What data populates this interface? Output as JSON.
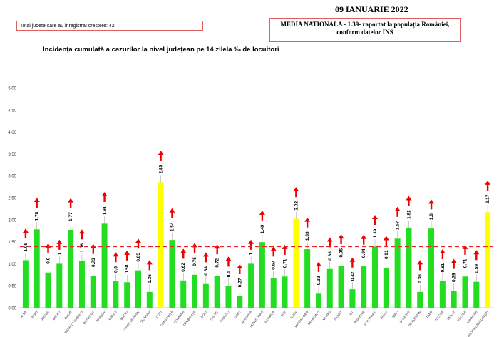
{
  "header": {
    "date": "09 IANUARIE 2022",
    "increase_note": "Total judete care au inregistrat crestere: 42",
    "national_media_line1": "MEDIA NATIONALA   - 1.39-   raportat la populația României,",
    "national_media_line2": "conform datelor INS"
  },
  "colors": {
    "bar_default": "#22dd22",
    "bar_highlight": "#ffff00",
    "arrow": "#ee0000",
    "reference_line": "#ee2222"
  },
  "chart_data": {
    "type": "bar",
    "title": "Incidența cumulată a cazurilor la nivel județean pe 14 zilela ‰ de locuitori",
    "ylim": [
      0,
      5
    ],
    "yticks": [
      "0.00",
      "0.50",
      "1.00",
      "1.50",
      "2.00",
      "2.50",
      "3.00",
      "3.50",
      "4.00",
      "4.50",
      "5.00"
    ],
    "reference_value": 1.39,
    "categories": [
      "ALBA",
      "ARAD",
      "ARGEȘ",
      "BACĂU",
      "BIHOR",
      "BISTRIȚA-NĂSĂUD",
      "BOTOȘANI",
      "BRAȘOV",
      "BRĂILA",
      "BUZĂU",
      "CARAȘ-SEVERIN",
      "CĂLĂRAȘI",
      "CLUJ",
      "CONSTANȚA",
      "COVASNA",
      "DÂMBOVIȚA",
      "DOLJ",
      "GALAȚI",
      "GIURGIU",
      "GORJ",
      "HARGHITA",
      "HUNEDOARA",
      "IALOMIȚA",
      "IAȘI",
      "ILFOV",
      "MARAMUREȘ",
      "MEHEDINȚI",
      "MUREȘ",
      "NEAMȚ",
      "OLT",
      "PRAHOVA",
      "SATU-MARE",
      "SĂLAJ",
      "SIBIU",
      "SUCEAVA",
      "TELEORMAN",
      "TIMIȘ",
      "TULCEA",
      "VASLUI",
      "VÂLCEA",
      "VRANCEA",
      "MUNICIPIUL BUCUREȘTI"
    ],
    "values": [
      1.08,
      1.78,
      0.8,
      1,
      1.77,
      1.06,
      0.73,
      1.91,
      0.6,
      0.58,
      0.85,
      0.36,
      2.85,
      1.54,
      0.62,
      0.75,
      0.54,
      0.72,
      0.5,
      0.27,
      1,
      1.49,
      0.67,
      0.71,
      2.02,
      1.33,
      0.32,
      0.88,
      0.95,
      0.42,
      0.94,
      1.39,
      0.91,
      1.57,
      1.82,
      0.36,
      1.8,
      0.61,
      0.39,
      0.71,
      0.59,
      2.17
    ],
    "labels": [
      "1.08",
      "1.78",
      "0.8",
      "1",
      "1.77",
      "1.06",
      "0.73",
      "1.91",
      "0.6",
      "0.58",
      "0.85",
      "0.36",
      "2.85",
      "1.54",
      "0.62",
      "0.75",
      "0.54",
      "0.72",
      "0.5",
      "0.27",
      "1",
      "1.49",
      "0.67",
      "0.71",
      "2.02",
      "1.33",
      "0.32",
      "0.88",
      "0.95",
      "0.42",
      "0.94",
      "1.39",
      "0.91",
      "1.57",
      "1.82",
      "0.36",
      "1.8",
      "0.61",
      "0.39",
      "0.71",
      "0.59",
      "2.17"
    ],
    "highlighted": [
      "CLUJ",
      "ILFOV",
      "MUNICIPIUL BUCUREȘTI"
    ],
    "trend": "increase"
  }
}
